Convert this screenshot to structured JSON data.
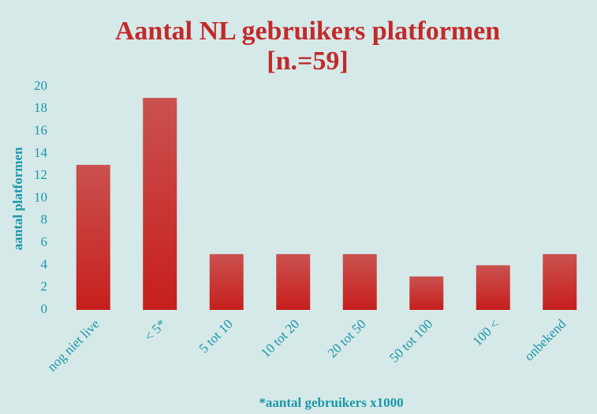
{
  "chart_data": {
    "type": "bar",
    "title": "Aantal NL gebruikers platformen",
    "subtitle": "[n.=59]",
    "x_label": "*aantal gebruikers x1000",
    "y_label": "aantal platformen",
    "categories": [
      "nog niet live",
      "< 5*",
      "5 tot 10",
      "10 tot 20",
      "20 tot 50",
      "50 tot 100",
      "100 <",
      "onbekend"
    ],
    "values": [
      13,
      19,
      5,
      5,
      5,
      3,
      4,
      5
    ],
    "color": "#c61f1c",
    "ylim": [
      0,
      20
    ],
    "yticks": [
      0,
      2,
      4,
      6,
      8,
      10,
      12,
      14,
      16,
      18,
      20
    ],
    "grid": false
  }
}
